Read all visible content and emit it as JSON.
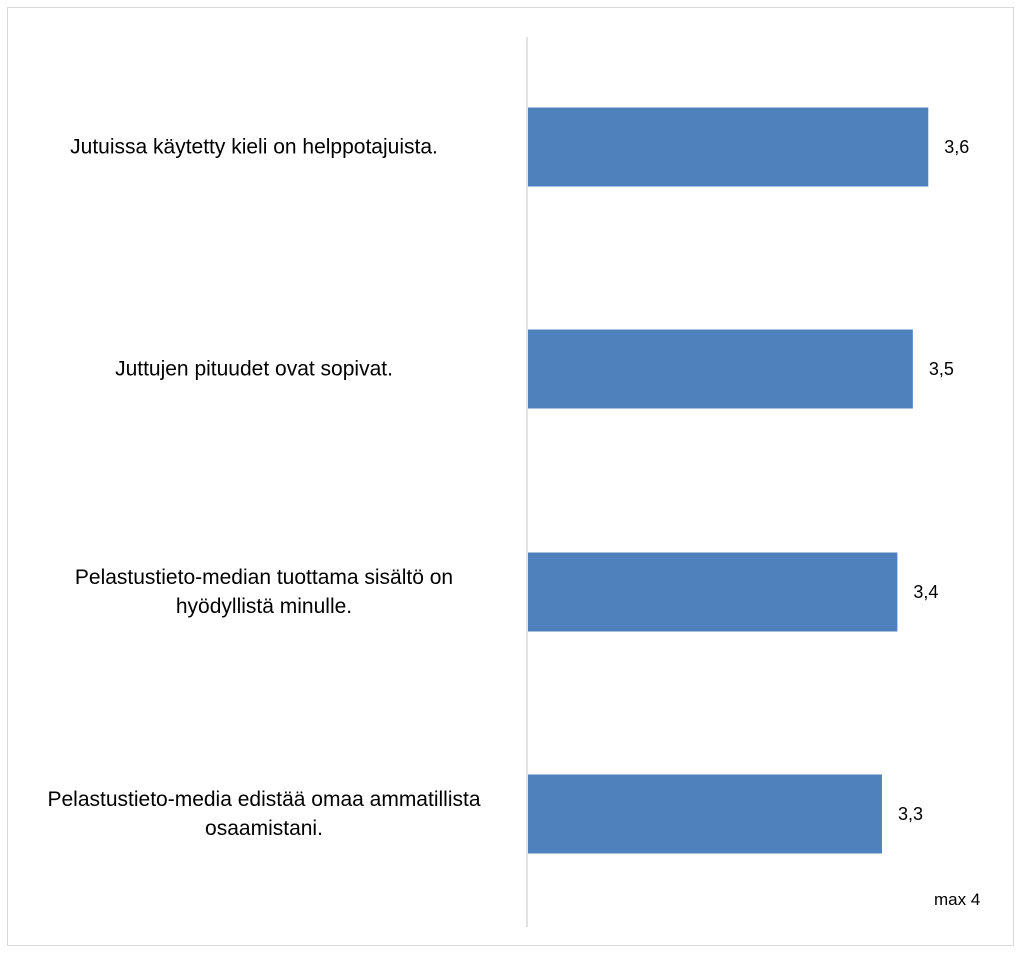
{
  "chart_data": {
    "type": "bar",
    "orientation": "horizontal",
    "categories": [
      "Jutuissa käytetty kieli on helppotajuista.",
      "Juttujen pituudet ovat sopivat.",
      "Pelastustieto-median tuottama sisältö on hyödyllistä minulle.",
      "Pelastustieto-media edistää omaa ammatillista osaamistani."
    ],
    "values": [
      3.6,
      3.5,
      3.4,
      3.3
    ],
    "value_labels": [
      "3,6",
      "3,5",
      "3,4",
      "3,3"
    ],
    "xlim": [
      1,
      4
    ],
    "annotation": "max 4",
    "grid": false,
    "bar_color": "#4f81bd",
    "axis_color": "#d9d9d9"
  }
}
